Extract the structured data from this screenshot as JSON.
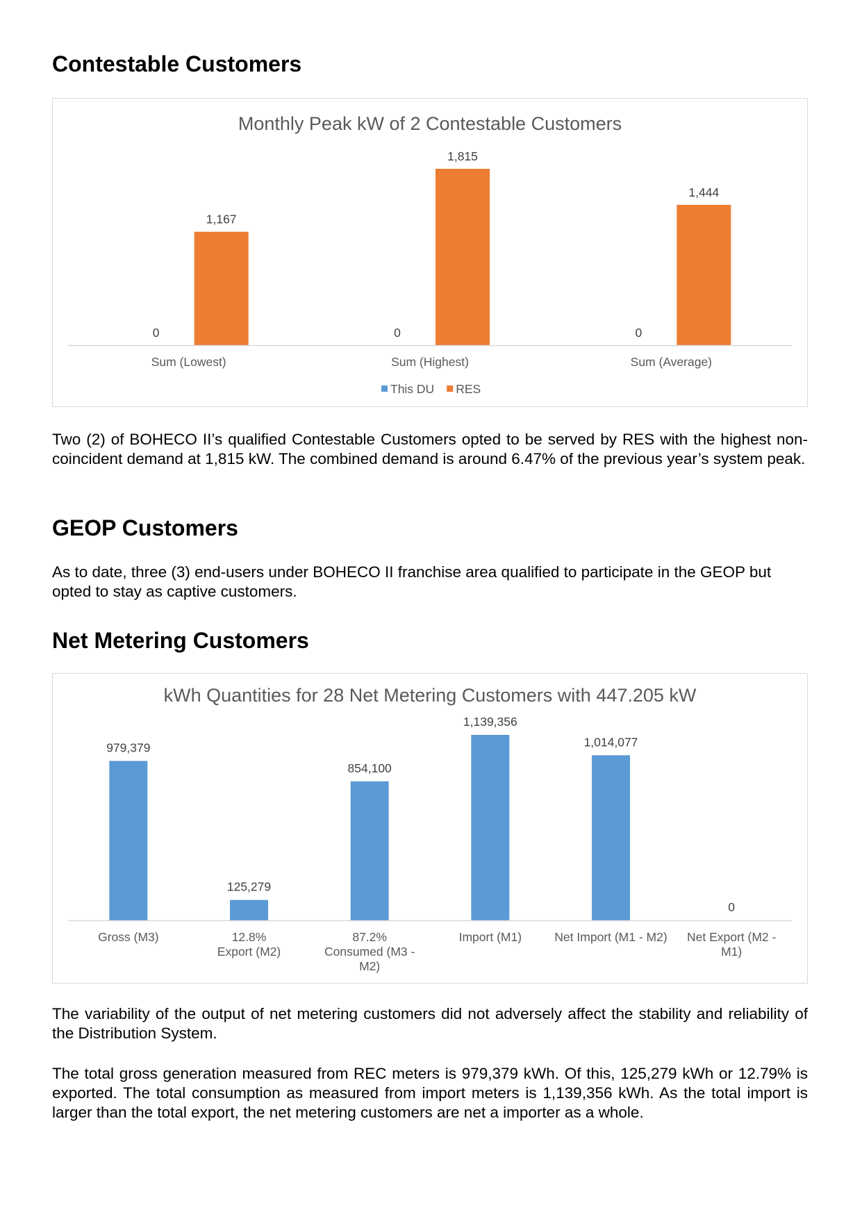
{
  "sections": {
    "contestable": {
      "heading": "Contestable Customers",
      "paragraph": "Two (2) of BOHECO II’s qualified Contestable Customers opted to be served by RES with the highest non-coincident demand at 1,815 kW. The combined demand is around 6.47% of the previous year’s system peak."
    },
    "geop": {
      "heading": "GEOP Customers",
      "paragraph": "As to date, three (3) end-users under BOHECO II franchise area qualified to participate in the GEOP but opted to stay as captive customers."
    },
    "net_metering": {
      "heading": "Net Metering Customers",
      "paragraph1": "The variability of the output of net metering customers did not adversely affect the stability and reliability of the Distribution System.",
      "paragraph2": "The total gross generation measured from REC meters is 979,379 kWh. Of this, 125,279 kWh or 12.79% is exported. The total consumption as measured from import meters is 1,139,356 kWh. As the total import is larger than the total export, the net metering customers are net a importer as a whole."
    }
  },
  "chart_data": [
    {
      "type": "bar",
      "title": "Monthly Peak kW of 2 Contestable Customers",
      "categories": [
        "Sum (Lowest)",
        "Sum (Highest)",
        "Sum (Average)"
      ],
      "series": [
        {
          "name": "This DU",
          "color": "#5b9bd5",
          "values": [
            0,
            0,
            0
          ],
          "labels": [
            "0",
            "0",
            "0"
          ]
        },
        {
          "name": "RES",
          "color": "#ed7d31",
          "values": [
            1167,
            1815,
            1444
          ],
          "labels": [
            "1,167",
            "1,815",
            "1,444"
          ]
        }
      ],
      "ylim": [
        0,
        1815
      ],
      "grid": false,
      "legend": "bottom"
    },
    {
      "type": "bar",
      "title": "kWh Quantities for 28 Net Metering Customers with 447.205 kW",
      "categories": [
        [
          "Gross (M3)"
        ],
        [
          "12.8%",
          "Export (M2)"
        ],
        [
          "87.2%",
          "Consumed (M3 -",
          "M2)"
        ],
        [
          "Import (M1)"
        ],
        [
          "Net Import (M1 - M2)"
        ],
        [
          "Net Export (M2 -",
          "M1)"
        ]
      ],
      "series": [
        {
          "color": "#5b9bd5",
          "values": [
            979379,
            125279,
            854100,
            1139356,
            1014077,
            0
          ],
          "labels": [
            "979,379",
            "125,279",
            "854,100",
            "1,139,356",
            "1,014,077",
            "0"
          ]
        }
      ],
      "ylim": [
        0,
        1139356
      ],
      "grid": false,
      "legend": "none"
    }
  ]
}
